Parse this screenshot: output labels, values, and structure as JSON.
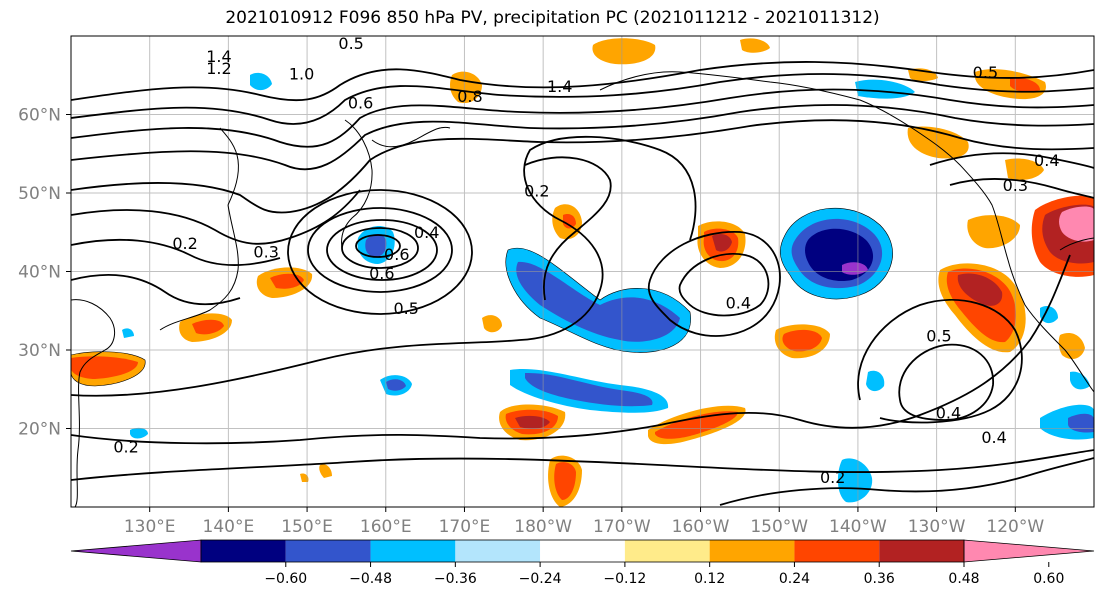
{
  "title": "2021010912 F096 850 hPa PV, precipitation PC (2021011212 - 2021011312)",
  "map": {
    "lon_ticks": [
      "130°E",
      "140°E",
      "150°E",
      "160°E",
      "170°E",
      "180°W",
      "170°W",
      "160°W",
      "150°W",
      "140°W",
      "130°W",
      "120°W"
    ],
    "lat_ticks": [
      "60°N",
      "50°N",
      "40°N",
      "30°N",
      "20°N"
    ],
    "lon_range": [
      120,
      250
    ],
    "lat_range": [
      10,
      70
    ]
  },
  "colorbar": {
    "ticks": [
      "−0.60",
      "−0.48",
      "−0.36",
      "−0.24",
      "−0.12",
      "0.12",
      "0.24",
      "0.36",
      "0.48",
      "0.60"
    ],
    "colors": [
      "#9933cc",
      "#000080",
      "#3355cc",
      "#00bfff",
      "#b3e5fc",
      "#ffffff",
      "#ffeb8a",
      "#ffa500",
      "#ff4500",
      "#b22222",
      "#ff88b0"
    ],
    "extend": "both"
  },
  "contour_labels": [
    {
      "text": "1.4",
      "lon": 138.8,
      "lat": 67.3
    },
    {
      "text": "1.2",
      "lon": 138.8,
      "lat": 65.8
    },
    {
      "text": "1.0",
      "lon": 149.3,
      "lat": 65.1
    },
    {
      "text": "0.5",
      "lon": 155.6,
      "lat": 69.0
    },
    {
      "text": "0.6",
      "lon": 156.8,
      "lat": 61.4
    },
    {
      "text": "0.8",
      "lon": 170.7,
      "lat": 62.2
    },
    {
      "text": "1.4",
      "lon": 182.1,
      "lat": 63.5
    },
    {
      "text": "0.2",
      "lon": 179.2,
      "lat": 50.2
    },
    {
      "text": "0.4",
      "lon": 165.2,
      "lat": 44.9
    },
    {
      "text": "0.6",
      "lon": 161.4,
      "lat": 42.1
    },
    {
      "text": "0.6",
      "lon": 159.5,
      "lat": 39.7
    },
    {
      "text": "0.5",
      "lon": 162.6,
      "lat": 35.2
    },
    {
      "text": "0.2",
      "lon": 134.5,
      "lat": 43.5
    },
    {
      "text": "0.3",
      "lon": 144.8,
      "lat": 42.4
    },
    {
      "text": "0.4",
      "lon": 204.8,
      "lat": 35.9
    },
    {
      "text": "0.5",
      "lon": 230.3,
      "lat": 31.7
    },
    {
      "text": "0.4",
      "lon": 231.5,
      "lat": 21.9
    },
    {
      "text": "0.4",
      "lon": 237.3,
      "lat": 18.8
    },
    {
      "text": "0.2",
      "lon": 216.8,
      "lat": 13.7
    },
    {
      "text": "0.2",
      "lon": 127.0,
      "lat": 17.6
    },
    {
      "text": "0.4",
      "lon": 244.0,
      "lat": 54.1
    },
    {
      "text": "0.3",
      "lon": 240.0,
      "lat": 50.9
    },
    {
      "text": "0.5",
      "lon": 236.2,
      "lat": 65.3
    }
  ]
}
